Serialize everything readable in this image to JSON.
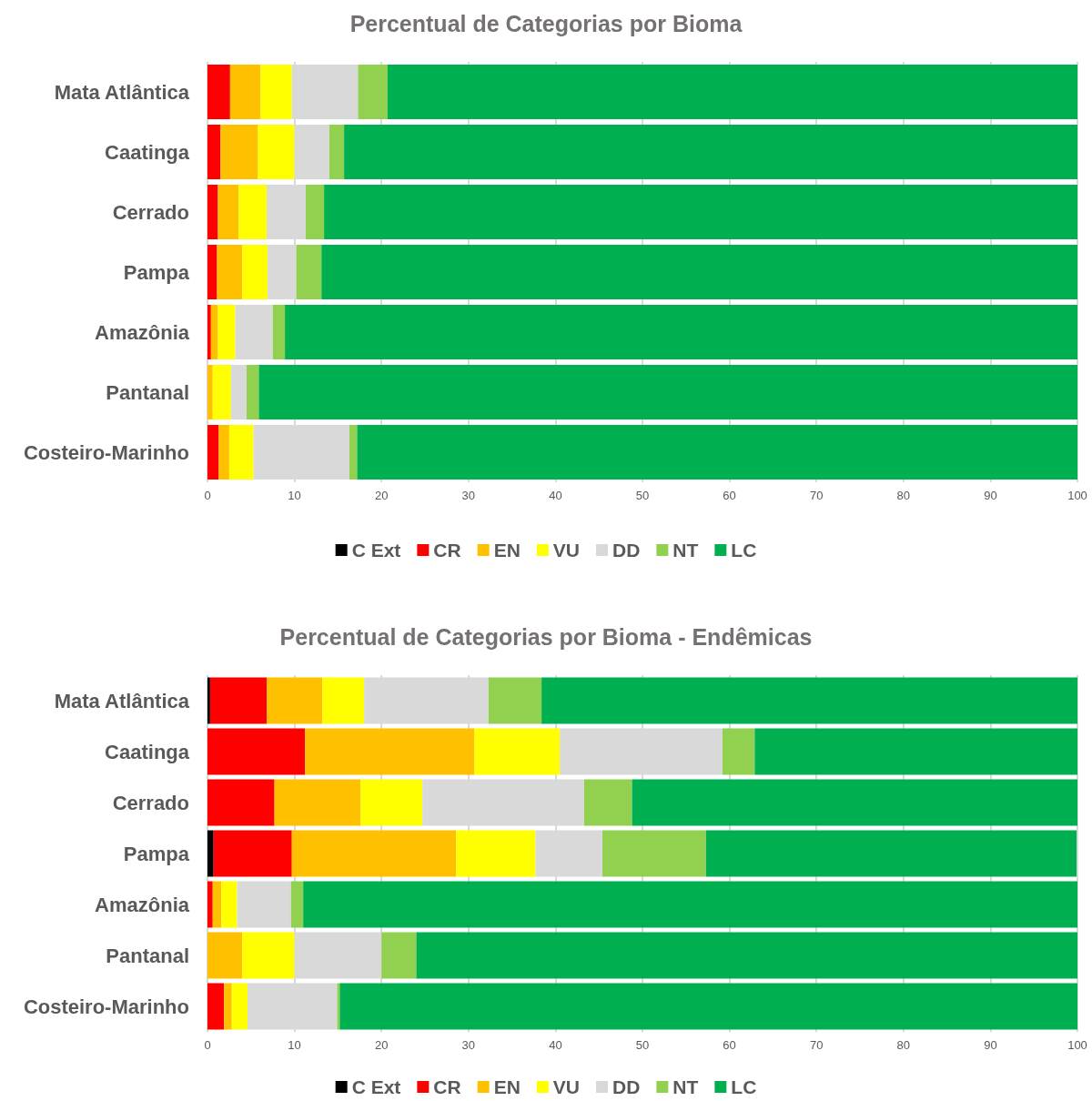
{
  "chart_data": [
    {
      "type": "bar",
      "title": "Percentual de Categorias por Bioma",
      "orientation": "horizontal",
      "stacked": true,
      "categories": [
        "Mata Atlântica",
        "Caatinga",
        "Cerrado",
        "Pampa",
        "Amazônia",
        "Pantanal",
        "Costeiro-Marinho"
      ],
      "series": [
        {
          "name": "C Ext",
          "color": "#000000",
          "values": [
            0,
            0,
            0,
            0,
            0,
            0,
            0
          ]
        },
        {
          "name": "CR",
          "color": "#ff0000",
          "values": [
            2.6,
            1.5,
            1.2,
            1.1,
            0.4,
            0,
            1.3
          ]
        },
        {
          "name": "EN",
          "color": "#ffc000",
          "values": [
            3.5,
            4.3,
            2.4,
            2.9,
            0.8,
            0.6,
            1.2
          ]
        },
        {
          "name": "VU",
          "color": "#ffff00",
          "values": [
            3.6,
            4.2,
            3.2,
            2.9,
            2.0,
            2.1,
            2.8
          ]
        },
        {
          "name": "DD",
          "color": "#d9d9d9",
          "values": [
            7.6,
            4.0,
            4.5,
            3.3,
            4.3,
            1.8,
            11.0
          ]
        },
        {
          "name": "NT",
          "color": "#92d050",
          "values": [
            3.4,
            1.7,
            2.1,
            2.9,
            1.4,
            1.4,
            0.9
          ]
        },
        {
          "name": "LC",
          "color": "#00b050",
          "values": [
            79.3,
            84.3,
            86.6,
            86.9,
            91.1,
            94.1,
            82.8
          ]
        }
      ],
      "xlim": [
        0,
        100
      ],
      "xticks": [
        0,
        10,
        20,
        30,
        40,
        50,
        60,
        70,
        80,
        90,
        100
      ],
      "grid": "x",
      "legend": "bottom"
    },
    {
      "type": "bar",
      "title": "Percentual de Categorias por Bioma - Endêmicas",
      "orientation": "horizontal",
      "stacked": true,
      "categories": [
        "Mata Atlântica",
        "Caatinga",
        "Cerrado",
        "Pampa",
        "Amazônia",
        "Pantanal",
        "Costeiro-Marinho"
      ],
      "series": [
        {
          "name": "C Ext",
          "color": "#000000",
          "values": [
            0.3,
            0,
            0,
            0.7,
            0,
            0,
            0
          ]
        },
        {
          "name": "CR",
          "color": "#ff0000",
          "values": [
            6.5,
            11.2,
            7.7,
            9.0,
            0.6,
            0,
            1.9
          ]
        },
        {
          "name": "EN",
          "color": "#ffc000",
          "values": [
            6.4,
            19.5,
            9.9,
            18.9,
            1.0,
            4.0,
            0.9
          ]
        },
        {
          "name": "VU",
          "color": "#ffff00",
          "values": [
            4.8,
            9.8,
            7.1,
            9.1,
            1.8,
            6.0,
            1.8
          ]
        },
        {
          "name": "DD",
          "color": "#d9d9d9",
          "values": [
            14.3,
            18.7,
            18.6,
            7.7,
            6.2,
            10.0,
            10.3
          ]
        },
        {
          "name": "NT",
          "color": "#92d050",
          "values": [
            6.1,
            3.7,
            5.5,
            11.9,
            1.4,
            4.0,
            0.3
          ]
        },
        {
          "name": "LC",
          "color": "#00b050",
          "values": [
            61.6,
            37.1,
            51.2,
            42.6,
            89.0,
            76.0,
            84.8
          ]
        }
      ],
      "xlim": [
        0,
        100
      ],
      "xticks": [
        0,
        10,
        20,
        30,
        40,
        50,
        60,
        70,
        80,
        90,
        100
      ],
      "grid": "x",
      "legend": "bottom"
    }
  ]
}
